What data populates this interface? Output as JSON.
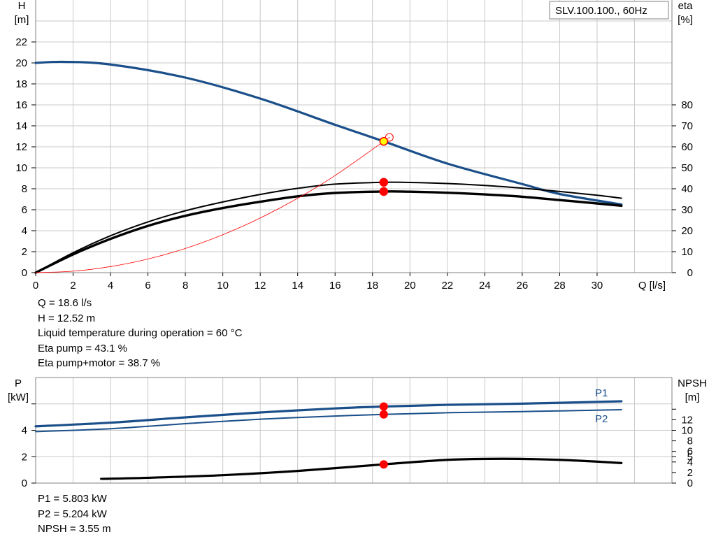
{
  "chart_data": [
    {
      "type": "line",
      "title": "SLV.100.100., 60Hz",
      "ylabel": "H",
      "ylabel_unit": "[m]",
      "y2label": "eta",
      "y2label_unit": "[%]",
      "xlabel": "Q [l/s]",
      "xlim": [
        0,
        34
      ],
      "ylim": [
        0,
        26
      ],
      "y2lim": [
        0,
        130
      ],
      "x_ticks": [
        0,
        2,
        4,
        6,
        8,
        10,
        12,
        14,
        16,
        18,
        20,
        22,
        24,
        26,
        28,
        30
      ],
      "y_ticks": [
        0,
        2,
        4,
        6,
        8,
        10,
        12,
        14,
        16,
        18,
        20,
        22
      ],
      "y2_ticks": [
        0,
        10,
        20,
        30,
        40,
        50,
        60,
        70,
        80
      ],
      "grid": true,
      "series": [
        {
          "kind": "head",
          "axis": "left",
          "color": "#1a4f8a",
          "x": [
            0,
            1.5,
            4,
            8,
            12,
            16,
            18.6,
            22,
            26,
            28,
            31.3
          ],
          "y": [
            20.0,
            20.1,
            19.85,
            18.6,
            16.6,
            14.1,
            12.52,
            10.4,
            8.45,
            7.5,
            6.5
          ]
        },
        {
          "kind": "eta-pump",
          "axis": "right",
          "color": "#000000",
          "x": [
            0,
            2,
            4,
            6,
            8,
            10,
            12,
            14,
            16,
            18.6,
            20,
            22,
            24,
            26,
            28,
            30,
            31.3
          ],
          "y": [
            0,
            9.5,
            17.6,
            24.2,
            29.5,
            33.7,
            37.3,
            40.2,
            42.2,
            43.1,
            43.0,
            42.5,
            41.6,
            40.3,
            38.7,
            36.9,
            35.5
          ]
        },
        {
          "kind": "eta-pump-motor",
          "axis": "right",
          "color": "#000000",
          "x": [
            0,
            2,
            4,
            6,
            8,
            10,
            12,
            14,
            16,
            18.6,
            20,
            22,
            24,
            26,
            28,
            30,
            31.3
          ],
          "y": [
            0,
            8.7,
            16.1,
            22.3,
            27.1,
            30.8,
            33.8,
            36.4,
            38.0,
            38.7,
            38.6,
            38.1,
            37.3,
            36.2,
            34.6,
            33.0,
            31.9
          ]
        },
        {
          "kind": "system-curve",
          "axis": "left",
          "color": "#ff0000",
          "x": [
            0,
            2,
            4,
            6,
            8,
            10,
            12,
            14,
            16,
            18.6,
            18.9
          ],
          "y": [
            0,
            0.14,
            0.58,
            1.3,
            2.31,
            3.62,
            5.21,
            7.09,
            9.26,
            12.52,
            12.9
          ]
        }
      ],
      "markers": [
        {
          "axis": "left",
          "x": 18.6,
          "y": 12.52,
          "fill": "#ffff00",
          "stroke": "#ff0000",
          "kind": "duty-point"
        },
        {
          "axis": "right",
          "x": 18.6,
          "y": 43.1,
          "fill": "#ff0000",
          "stroke": "#ff0000",
          "kind": "eta-pump"
        },
        {
          "axis": "right",
          "x": 18.6,
          "y": 38.7,
          "fill": "#ff0000",
          "stroke": "#ff0000",
          "kind": "eta-pump-motor"
        }
      ]
    },
    {
      "type": "line",
      "ylabel": "P",
      "ylabel_unit": "[kW]",
      "y2label": "NPSH",
      "y2label_unit": "[m]",
      "xlim": [
        0,
        34
      ],
      "ylim": [
        0,
        8
      ],
      "y2lim": [
        0,
        20
      ],
      "y_ticks": [
        0,
        2,
        4
      ],
      "y2_ticks": [
        0,
        2,
        4,
        5,
        6,
        8,
        10,
        12
      ],
      "grid": true,
      "series": [
        {
          "name": "P1",
          "axis": "left",
          "color": "#1a4f8a",
          "x": [
            0,
            4,
            8,
            12,
            16,
            18.6,
            22,
            26,
            31.3
          ],
          "y": [
            4.3,
            4.58,
            4.98,
            5.35,
            5.66,
            5.803,
            5.93,
            6.02,
            6.2
          ]
        },
        {
          "name": "P2",
          "axis": "left",
          "color": "#1a4f8a",
          "x": [
            0,
            4,
            8,
            12,
            16,
            18.6,
            22,
            26,
            31.3
          ],
          "y": [
            3.9,
            4.12,
            4.5,
            4.84,
            5.08,
            5.204,
            5.33,
            5.42,
            5.56
          ]
        },
        {
          "name": "NPSH",
          "axis": "right",
          "color": "#000000",
          "x": [
            3.5,
            6,
            10,
            14,
            18.6,
            22,
            25,
            28,
            31.3
          ],
          "y": [
            0.8,
            1.0,
            1.5,
            2.3,
            3.55,
            4.4,
            4.6,
            4.4,
            3.8
          ]
        }
      ],
      "markers": [
        {
          "axis": "left",
          "x": 18.6,
          "y": 5.803,
          "fill": "#ff0000",
          "kind": "P1"
        },
        {
          "axis": "left",
          "x": 18.6,
          "y": 5.204,
          "fill": "#ff0000",
          "kind": "P2"
        },
        {
          "axis": "right",
          "x": 18.6,
          "y": 3.55,
          "fill": "#ff0000",
          "kind": "NPSH"
        }
      ]
    }
  ],
  "operating_point": {
    "q": "Q = 18.6 l/s",
    "h": "H = 12.52 m",
    "temp": "Liquid temperature during operation = 60 °C",
    "eta_pump": "Eta pump = 43.1 %",
    "eta_pump_motor": "Eta pump+motor = 38.7 %"
  },
  "power_info": {
    "p1": "P1 = 5.803 kW",
    "p2": "P2 = 5.204 kW",
    "npsh": "NPSH = 3.55 m"
  }
}
